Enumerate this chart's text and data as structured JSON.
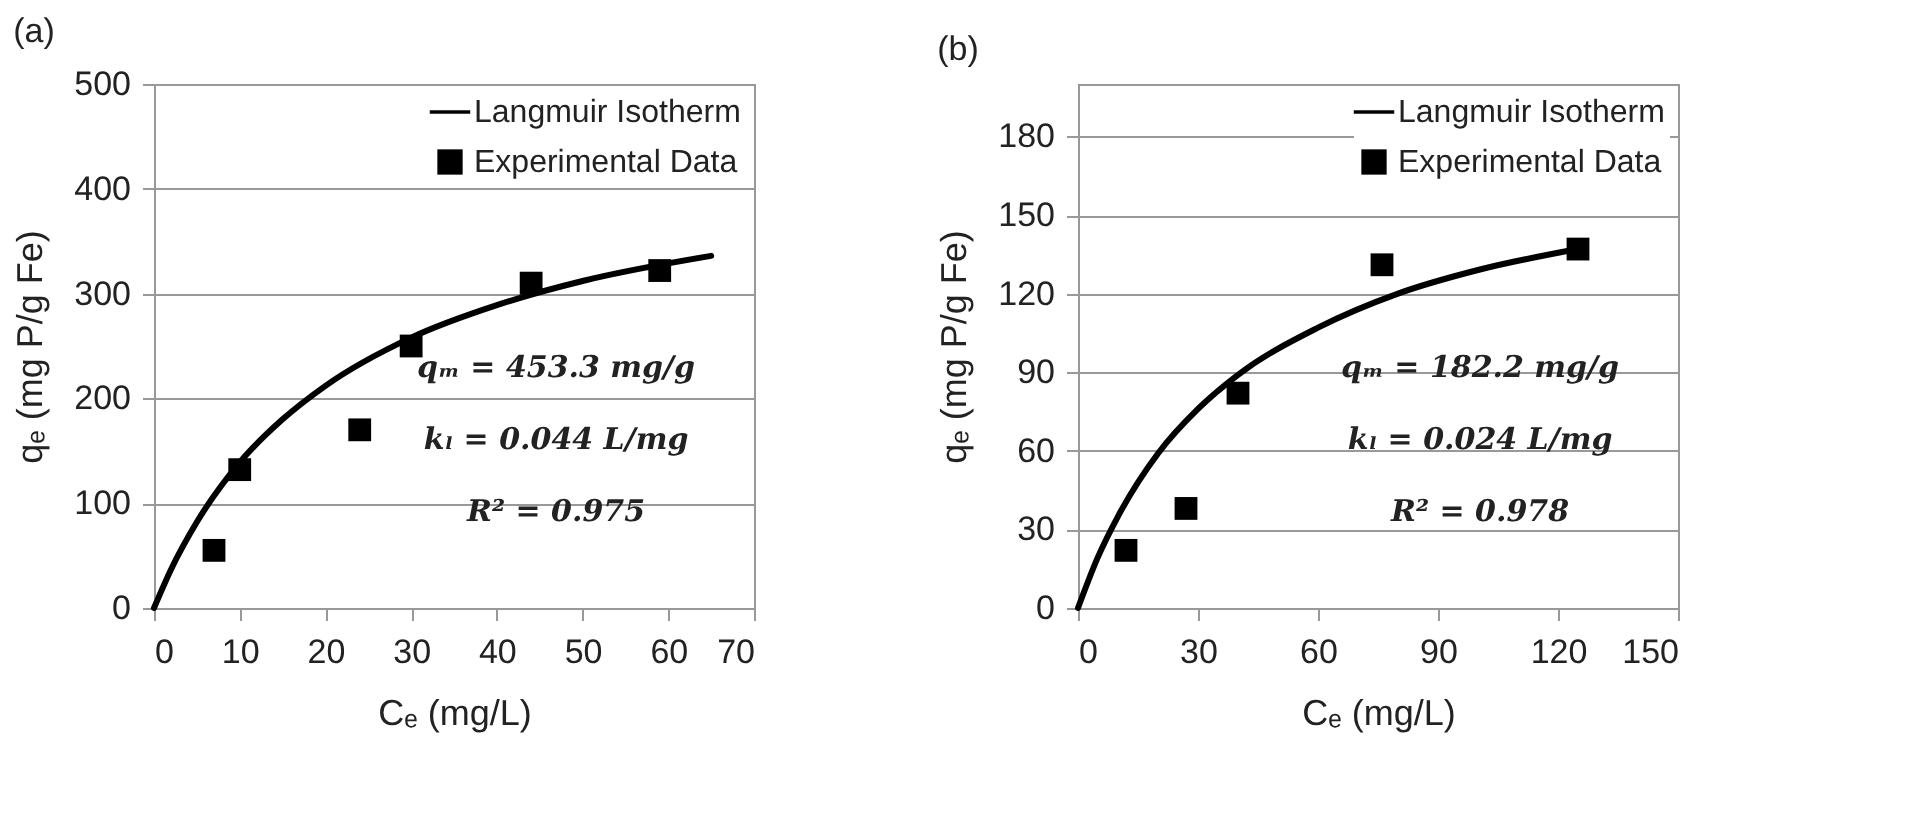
{
  "chart_data": [
    {
      "type": "scatter",
      "title": "(a)",
      "xlabel": "Cₑ (mg/L)",
      "ylabel": "qₑ (mg P/g Fe)",
      "xlim": [
        0,
        70
      ],
      "ylim": [
        0,
        500
      ],
      "xticks": [
        0,
        10,
        20,
        30,
        40,
        50,
        60,
        70
      ],
      "yticks": [
        0,
        100,
        200,
        300,
        400,
        500
      ],
      "grid": "y",
      "legend": "top right",
      "annotations": [
        "qₘ = 453.3 mg/g",
        "kₗ = 0.044 L/mg",
        "R² = 0.975"
      ],
      "series": [
        {
          "name": "Langmuir Isotherm",
          "type": "line",
          "color": "#000000",
          "line_style": "solid",
          "marker": "none",
          "x": [
            0,
            2,
            5,
            10,
            15,
            20,
            30,
            40,
            50,
            65
          ],
          "values": [
            0,
            37,
            82,
            139,
            180,
            212,
            258,
            289,
            312,
            336
          ]
        },
        {
          "name": "Experimental Data",
          "type": "scatter",
          "color": "#000000",
          "marker": "square",
          "x": [
            7,
            10,
            24,
            30,
            44,
            59
          ],
          "values": [
            55,
            132,
            170,
            250,
            310,
            322
          ]
        }
      ]
    },
    {
      "type": "scatter",
      "title": "(b)",
      "xlabel": "Cₑ (mg/L)",
      "ylabel": "qₑ (mg P/g Fe)",
      "xlim": [
        0,
        150
      ],
      "ylim": [
        0,
        200
      ],
      "xticks": [
        0,
        30,
        60,
        90,
        120,
        150
      ],
      "yticks": [
        0,
        30,
        60,
        90,
        120,
        150,
        180
      ],
      "grid": "y",
      "legend": "top right",
      "annotations": [
        "qₘ = 182.2 mg/g",
        "kₗ = 0.024 L/mg",
        "R² = 0.978"
      ],
      "series": [
        {
          "name": "Langmuir Isotherm",
          "type": "line",
          "color": "#000000",
          "line_style": "solid",
          "marker": "none",
          "x": [
            0,
            5,
            10,
            20,
            30,
            40,
            60,
            80,
            100,
            125
          ],
          "values": [
            0,
            19.5,
            35,
            59,
            76,
            89,
            107,
            120,
            129,
            137
          ]
        },
        {
          "name": "Experimental Data",
          "type": "scatter",
          "color": "#000000",
          "marker": "square",
          "x": [
            12,
            27,
            40,
            76,
            125
          ],
          "values": [
            22,
            38,
            82,
            131,
            137
          ]
        }
      ]
    }
  ]
}
